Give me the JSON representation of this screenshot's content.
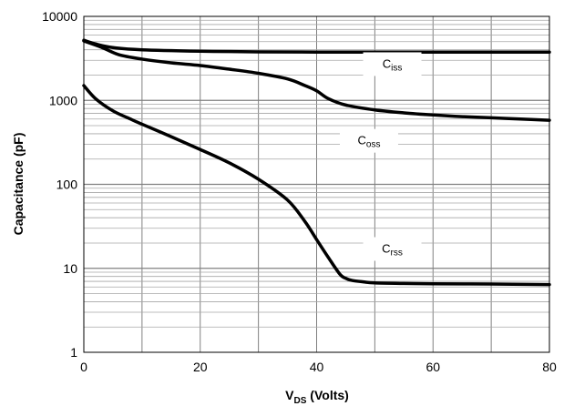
{
  "chart_data": {
    "type": "line",
    "title": "",
    "xlabel": {
      "main": "V",
      "sub": "DS",
      "rest": " (Volts)"
    },
    "ylabel": "Capacitance (pF)",
    "xlim": [
      0,
      80
    ],
    "ylim": [
      1,
      10000
    ],
    "yscale": "log",
    "grid": true,
    "x_ticks": [
      0,
      20,
      40,
      60,
      80
    ],
    "x_tick_labels": [
      "0",
      "20",
      "40",
      "60",
      "80"
    ],
    "y_ticks": [
      1,
      10,
      100,
      1000,
      10000
    ],
    "y_tick_labels": [
      "1",
      "10",
      "100",
      "1000",
      "10000"
    ],
    "line_color": "#000000",
    "grid_color": "#808080",
    "series": [
      {
        "name": "Ciss",
        "label_main": "C",
        "label_sub": "iss",
        "label_at": [
          53,
          2700
        ],
        "x": [
          0,
          2,
          5,
          10,
          20,
          30,
          40,
          50,
          60,
          70,
          80
        ],
        "y": [
          5200,
          4700,
          4250,
          4000,
          3850,
          3780,
          3760,
          3750,
          3750,
          3750,
          3750
        ]
      },
      {
        "name": "Coss",
        "label_main": "C",
        "label_sub": "oss",
        "label_at": [
          49,
          330
        ],
        "x": [
          0,
          3,
          6,
          10,
          15,
          20,
          25,
          30,
          35,
          38,
          40,
          42,
          45,
          50,
          55,
          60,
          65,
          70,
          75,
          80
        ],
        "y": [
          5100,
          4300,
          3500,
          3100,
          2800,
          2600,
          2350,
          2100,
          1800,
          1500,
          1300,
          1050,
          880,
          770,
          710,
          670,
          640,
          620,
          600,
          580
        ]
      },
      {
        "name": "Crss",
        "label_main": "C",
        "label_sub": "rss",
        "label_at": [
          53,
          17
        ],
        "x": [
          0,
          2,
          5,
          8,
          10,
          15,
          20,
          25,
          30,
          35,
          38,
          40,
          42,
          44,
          45,
          46,
          48,
          50,
          55,
          60,
          70,
          80
        ],
        "y": [
          1500,
          1050,
          750,
          600,
          520,
          370,
          260,
          180,
          115,
          65,
          36,
          22,
          13.5,
          8.5,
          7.6,
          7.2,
          6.9,
          6.7,
          6.6,
          6.55,
          6.5,
          6.4
        ]
      }
    ]
  }
}
